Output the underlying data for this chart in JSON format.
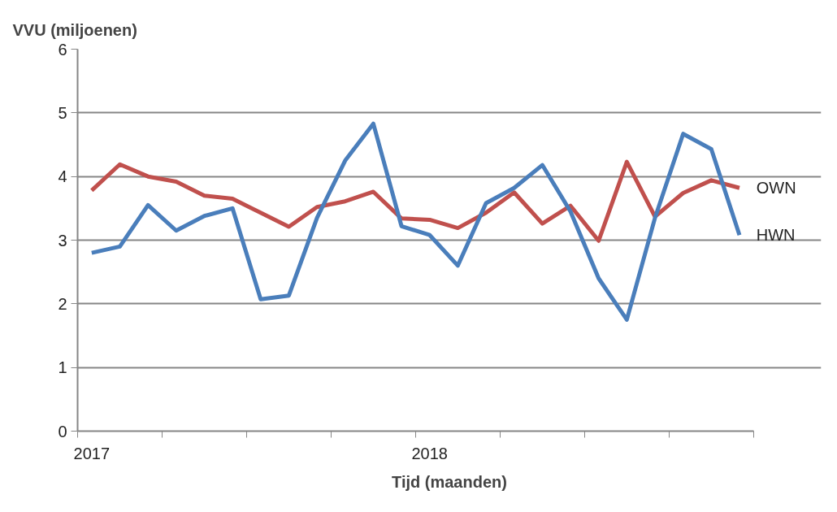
{
  "chart_data": {
    "type": "line",
    "ylabel": "VVU (miljoenen)",
    "xlabel": "Tijd (maanden)",
    "categories": [
      "2017",
      null,
      null,
      null,
      null,
      null,
      null,
      null,
      null,
      null,
      null,
      null,
      "2018",
      null,
      null,
      null,
      null,
      null,
      null,
      null,
      null,
      null,
      null,
      null
    ],
    "series": [
      {
        "name": "OWN",
        "color": "#c0504d",
        "values": [
          3.78,
          4.19,
          4.0,
          3.92,
          3.7,
          3.65,
          3.43,
          3.21,
          3.52,
          3.61,
          3.76,
          3.34,
          3.32,
          3.19,
          3.43,
          3.75,
          3.26,
          3.54,
          2.99,
          4.23,
          3.37,
          3.74,
          3.94,
          3.82
        ]
      },
      {
        "name": "HWN",
        "color": "#4a7ebb",
        "values": [
          2.8,
          2.9,
          3.55,
          3.15,
          3.38,
          3.5,
          2.07,
          2.13,
          3.35,
          4.25,
          4.83,
          3.22,
          3.08,
          2.6,
          3.58,
          3.82,
          4.18,
          3.45,
          2.4,
          1.75,
          3.35,
          4.67,
          4.43,
          3.08
        ]
      }
    ],
    "ylim": [
      0,
      6
    ],
    "yticks": [
      0,
      1,
      2,
      3,
      4,
      5,
      6
    ],
    "grid": "y",
    "marker": "none",
    "line_style": "solid"
  }
}
